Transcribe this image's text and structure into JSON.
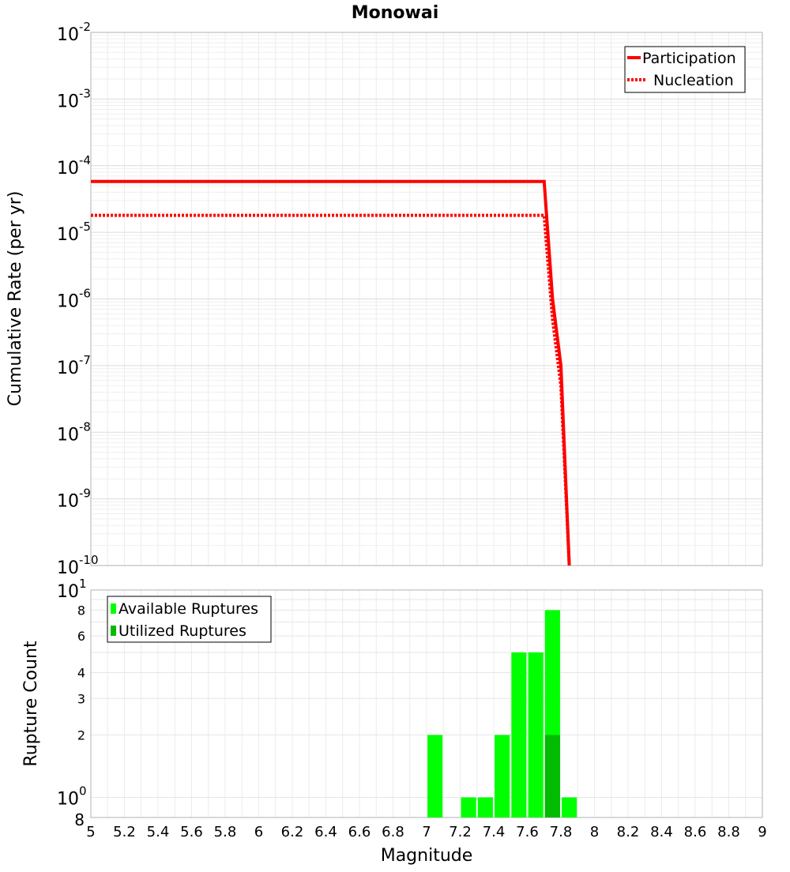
{
  "chart_data": [
    {
      "type": "line",
      "title": "Monowai",
      "xlabel": "",
      "ylabel": "Cumulative Rate (per yr)",
      "xlim": [
        5,
        9
      ],
      "ylim": [
        1e-10,
        0.01
      ],
      "yscale": "log",
      "y_tick_exponents": [
        "-10",
        "-9",
        "-8",
        "-7",
        "-6",
        "-5",
        "-4",
        "-3",
        "-2"
      ],
      "y_tick_base": "10",
      "grid": true,
      "legend_position": "top-right",
      "series": [
        {
          "name": "Participation",
          "style": "solid",
          "color": "#ff0000",
          "x": [
            5.0,
            7.7,
            7.75,
            7.8,
            7.85
          ],
          "y": [
            5.8e-05,
            5.8e-05,
            1e-06,
            1e-07,
            1e-10
          ]
        },
        {
          "name": "Nucleation",
          "style": "dotted",
          "color": "#ff0000",
          "x": [
            5.0,
            7.7,
            7.75,
            7.8,
            7.85
          ],
          "y": [
            1.8e-05,
            1.8e-05,
            5e-07,
            5e-08,
            1e-10
          ]
        }
      ]
    },
    {
      "type": "bar",
      "xlabel": "Magnitude",
      "ylabel": "Rupture Count",
      "xlim": [
        5,
        9
      ],
      "ylim": [
        0.8,
        10
      ],
      "yscale": "log",
      "x_ticks": [
        "5",
        "5.2",
        "5.4",
        "5.6",
        "5.8",
        "6",
        "6.2",
        "6.4",
        "6.6",
        "6.8",
        "7",
        "7.2",
        "7.4",
        "7.6",
        "7.8",
        "8",
        "8.2",
        "8.4",
        "8.6",
        "8.8",
        "9"
      ],
      "y_ticks_minor": [
        {
          "label": "8",
          "value": 8
        },
        {
          "label": "6",
          "value": 6
        },
        {
          "label": "4",
          "value": 4
        },
        {
          "label": "3",
          "value": 3
        },
        {
          "label": "2",
          "value": 2
        }
      ],
      "y_major_ticks": [
        {
          "base": "10",
          "exp": "1",
          "value": 10
        },
        {
          "base": "10",
          "exp": "0",
          "value": 1
        }
      ],
      "y_bottom_label": "8",
      "grid": true,
      "legend_position": "top-left",
      "bar_width": 0.09,
      "series": [
        {
          "name": "Available Ruptures",
          "color": "#00ff00",
          "x": [
            7.05,
            7.25,
            7.35,
            7.45,
            7.55,
            7.65,
            7.75,
            7.85
          ],
          "values": [
            2,
            1,
            1,
            2,
            5,
            5,
            8,
            1
          ]
        },
        {
          "name": "Utilized Ruptures",
          "color": "#00bb00",
          "x": [
            7.75
          ],
          "values": [
            2
          ]
        }
      ]
    }
  ]
}
